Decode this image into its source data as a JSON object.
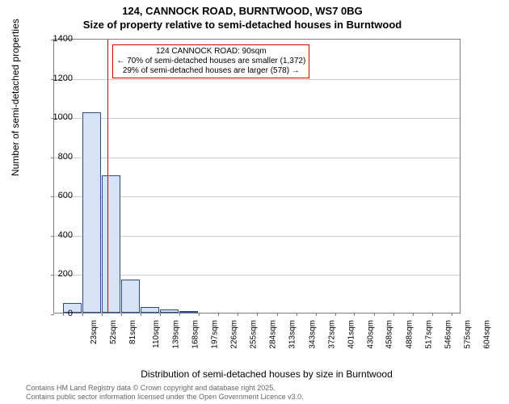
{
  "title_line1": "124, CANNOCK ROAD, BURNTWOOD, WS7 0BG",
  "title_line2": "Size of property relative to semi-detached houses in Burntwood",
  "ylabel": "Number of semi-detached properties",
  "xlabel": "Distribution of semi-detached houses by size in Burntwood",
  "annotation": {
    "line1": "124 CANNOCK ROAD: 90sqm",
    "line2": "← 70% of semi-detached houses are smaller (1,372)",
    "line3": "29% of semi-detached houses are larger (578) →"
  },
  "chart": {
    "type": "histogram",
    "ylim": [
      0,
      1400
    ],
    "ytick_step": 200,
    "yticks": [
      0,
      200,
      400,
      600,
      800,
      1000,
      1200,
      1400
    ],
    "xlim_sqm": [
      10,
      618
    ],
    "xticks_labels": [
      "23sqm",
      "52sqm",
      "81sqm",
      "110sqm",
      "139sqm",
      "168sqm",
      "197sqm",
      "226sqm",
      "255sqm",
      "284sqm",
      "313sqm",
      "343sqm",
      "372sqm",
      "401sqm",
      "430sqm",
      "458sqm",
      "488sqm",
      "517sqm",
      "546sqm",
      "575sqm",
      "604sqm"
    ],
    "xticks_sqm": [
      23,
      52,
      81,
      110,
      139,
      168,
      197,
      226,
      255,
      284,
      313,
      343,
      372,
      401,
      430,
      458,
      488,
      517,
      546,
      575,
      604
    ],
    "ref_line_sqm": 90,
    "bar_fill": "#d6e3f7",
    "bar_border": "#2a4a8a",
    "grid_color": "#cccccc",
    "axis_color": "#808080",
    "ref_color": "#cc0000",
    "background_color": "#ffffff",
    "bars": [
      {
        "x_sqm": 23,
        "width_sqm": 29,
        "value": 50
      },
      {
        "x_sqm": 52,
        "width_sqm": 29,
        "value": 1020
      },
      {
        "x_sqm": 81,
        "width_sqm": 29,
        "value": 700
      },
      {
        "x_sqm": 110,
        "width_sqm": 29,
        "value": 170
      },
      {
        "x_sqm": 139,
        "width_sqm": 29,
        "value": 30
      },
      {
        "x_sqm": 168,
        "width_sqm": 29,
        "value": 15
      },
      {
        "x_sqm": 197,
        "width_sqm": 29,
        "value": 5
      }
    ],
    "title_fontsize": 13,
    "label_fontsize": 12,
    "tick_fontsize": 11
  },
  "attribution": {
    "line1": "Contains HM Land Registry data © Crown copyright and database right 2025.",
    "line2": "Contains public sector information licensed under the Open Government Licence v3.0."
  }
}
